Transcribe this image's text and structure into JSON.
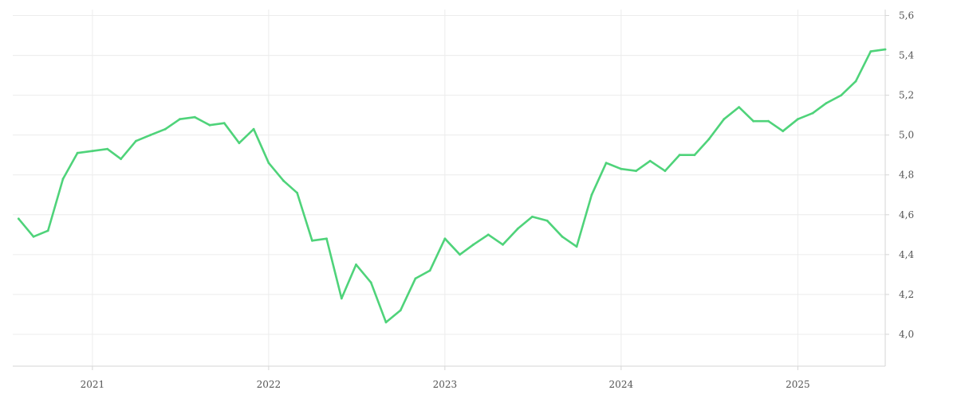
{
  "chart_data": {
    "type": "line",
    "title": "",
    "xlabel": "",
    "ylabel": "",
    "color": "#4fd37a",
    "grid": true,
    "y_axis_position": "right",
    "ylim": [
      3.84,
      5.63
    ],
    "xlim": [
      "2020-07-20",
      "2025-07-01"
    ],
    "x_ticks": [
      {
        "date": "2021-01-01",
        "label": "2021"
      },
      {
        "date": "2022-01-01",
        "label": "2022"
      },
      {
        "date": "2023-01-01",
        "label": "2023"
      },
      {
        "date": "2024-01-01",
        "label": "2024"
      },
      {
        "date": "2025-01-01",
        "label": "2025"
      }
    ],
    "y_ticks": [
      {
        "value": 4.0,
        "label": "4,0"
      },
      {
        "value": 4.2,
        "label": "4,2"
      },
      {
        "value": 4.4,
        "label": "4,4"
      },
      {
        "value": 4.6,
        "label": "4,6"
      },
      {
        "value": 4.8,
        "label": "4,8"
      },
      {
        "value": 5.0,
        "label": "5,0"
      },
      {
        "value": 5.2,
        "label": "5,2"
      },
      {
        "value": 5.4,
        "label": "5,4"
      },
      {
        "value": 5.6,
        "label": "5,6"
      }
    ],
    "series": [
      {
        "x": [
          "2020-08-01",
          "2020-09-01",
          "2020-10-01",
          "2020-11-01",
          "2020-12-01",
          "2021-01-01",
          "2021-02-01",
          "2021-03-01",
          "2021-04-01",
          "2021-05-01",
          "2021-06-01",
          "2021-07-01",
          "2021-08-01",
          "2021-09-01",
          "2021-10-01",
          "2021-11-01",
          "2021-12-01",
          "2022-01-01",
          "2022-02-01",
          "2022-03-01",
          "2022-04-01",
          "2022-05-01",
          "2022-06-01",
          "2022-07-01",
          "2022-08-01",
          "2022-09-01",
          "2022-10-01",
          "2022-11-01",
          "2022-12-01",
          "2023-01-01",
          "2023-02-01",
          "2023-03-01",
          "2023-04-01",
          "2023-05-01",
          "2023-06-01",
          "2023-07-01",
          "2023-08-01",
          "2023-09-01",
          "2023-10-01",
          "2023-11-01",
          "2023-12-01",
          "2024-01-01",
          "2024-02-01",
          "2024-03-01",
          "2024-04-01",
          "2024-05-01",
          "2024-06-01",
          "2024-07-01",
          "2024-08-01",
          "2024-09-01",
          "2024-10-01",
          "2024-11-01",
          "2024-12-01",
          "2025-01-01",
          "2025-02-01",
          "2025-03-01",
          "2025-04-01",
          "2025-05-01",
          "2025-06-01",
          "2025-07-01"
        ],
        "values": [
          4.58,
          4.49,
          4.52,
          4.78,
          4.91,
          4.92,
          4.93,
          4.88,
          4.97,
          5.0,
          5.03,
          5.08,
          5.09,
          5.05,
          5.06,
          4.96,
          5.03,
          4.86,
          4.77,
          4.71,
          4.47,
          4.48,
          4.18,
          4.35,
          4.26,
          4.06,
          4.12,
          4.28,
          4.32,
          4.48,
          4.4,
          4.45,
          4.5,
          4.45,
          4.53,
          4.59,
          4.57,
          4.49,
          4.44,
          4.7,
          4.86,
          4.83,
          4.82,
          4.87,
          4.82,
          4.9,
          4.9,
          4.98,
          5.08,
          5.14,
          5.07,
          5.07,
          5.02,
          5.08,
          5.11,
          5.16,
          5.2,
          5.27,
          5.42,
          5.43
        ]
      }
    ]
  }
}
